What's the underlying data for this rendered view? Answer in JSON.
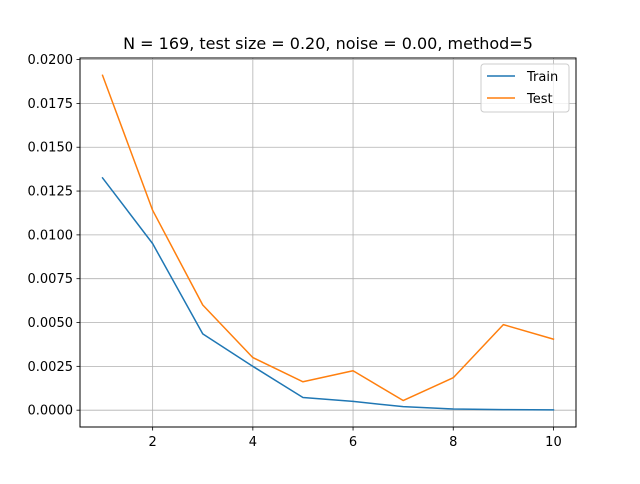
{
  "chart_data": {
    "type": "line",
    "title": "N = 169, test size = 0.20, noise = 0.00, method=5",
    "xlabel": "",
    "ylabel": "",
    "xlim": [
      0.55,
      10.45
    ],
    "ylim": [
      -0.00096,
      0.02009
    ],
    "x_ticks": [
      2,
      4,
      6,
      8,
      10
    ],
    "x_tick_labels": [
      "2",
      "4",
      "6",
      "8",
      "10"
    ],
    "y_ticks": [
      0,
      0.0025,
      0.005,
      0.0075,
      0.01,
      0.0125,
      0.015,
      0.0175,
      0.02
    ],
    "y_tick_labels": [
      "0.0000",
      "0.0025",
      "0.0050",
      "0.0075",
      "0.0100",
      "0.0125",
      "0.0150",
      "0.0175",
      "0.0200"
    ],
    "grid": true,
    "legend_position": "top-right",
    "x": [
      1,
      2,
      3,
      4,
      5,
      6,
      7,
      8,
      9,
      10
    ],
    "series": [
      {
        "name": "Train",
        "color": "#1f77b4",
        "values": [
          0.01325,
          0.0095,
          0.00435,
          0.0025,
          0.00072,
          0.0005,
          0.0002,
          7e-05,
          3e-05,
          2e-05
        ]
      },
      {
        "name": "Test",
        "color": "#ff7f0e",
        "values": [
          0.0191,
          0.0114,
          0.006,
          0.003,
          0.00162,
          0.00225,
          0.00055,
          0.00185,
          0.00488,
          0.00405
        ]
      }
    ]
  }
}
